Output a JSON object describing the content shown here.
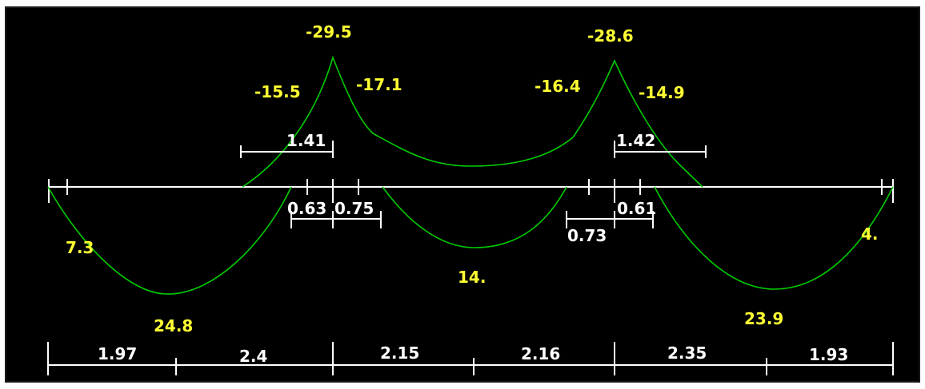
{
  "colors": {
    "background": "#000000",
    "beam": "#ffffff",
    "moment_curve": "#00cc00",
    "moment_label": "#ffff33",
    "dimension": "#ffffff"
  },
  "moment_labels": {
    "support_left_peak": "-29.5",
    "support_left_left": "-15.5",
    "support_left_right": "-17.1",
    "support_right_peak": "-28.6",
    "support_right_left": "-16.4",
    "support_right_right": "-14.9",
    "end_left": "7.3",
    "end_right": "4.",
    "span1_max": "24.8",
    "span2_max": "14.",
    "span3_max": "23.9"
  },
  "dimension_labels": {
    "neg_zone_left": "1.41",
    "neg_zone_right": "1.42",
    "zero_left_a": "0.63",
    "zero_left_b": "0.75",
    "zero_right_a": "0.73",
    "zero_right_b": "0.61"
  },
  "span_labels": [
    "1.97",
    "2.4",
    "2.15",
    "2.16",
    "2.35",
    "1.93"
  ]
}
